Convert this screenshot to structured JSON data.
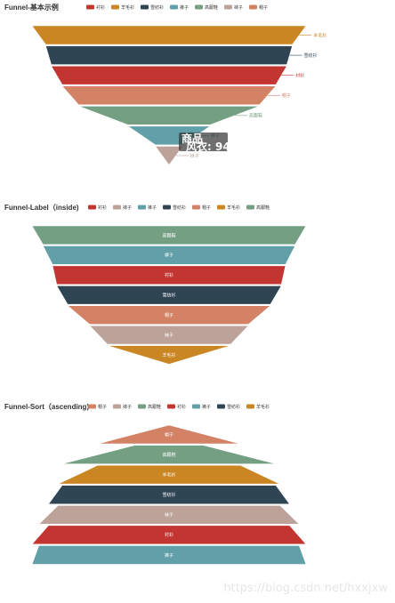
{
  "charts": [
    {
      "type": "funnel",
      "title": "Funnel-基本示例",
      "label_position": "outside",
      "sort": "descending",
      "legend": [
        "衬衫",
        "羊毛衫",
        "雪纺衫",
        "裤子",
        "高跟鞋",
        "袜子",
        "帽子"
      ],
      "data": [
        {
          "name": "羊毛衫",
          "value": 100
        },
        {
          "name": "雪纺衫",
          "value": 90
        },
        {
          "name": "衬衫",
          "value": 86
        },
        {
          "name": "帽子",
          "value": 78
        },
        {
          "name": "高跟鞋",
          "value": 66
        },
        {
          "name": "裤子",
          "value": 30
        },
        {
          "name": "袜子",
          "value": 10
        }
      ]
    },
    {
      "type": "funnel",
      "title": "Funnel-Label（inside)",
      "label_position": "inside",
      "sort": "descending",
      "legend": [
        "衬衫",
        "袜子",
        "裤子",
        "雪纺衫",
        "帽子",
        "羊毛衫",
        "高跟鞋"
      ],
      "data": [
        {
          "name": "高跟鞋",
          "value": 100
        },
        {
          "name": "裤子",
          "value": 92
        },
        {
          "name": "衬衫",
          "value": 85
        },
        {
          "name": "雪纺衫",
          "value": 82
        },
        {
          "name": "帽子",
          "value": 74
        },
        {
          "name": "袜子",
          "value": 58
        },
        {
          "name": "羊毛衫",
          "value": 45
        }
      ]
    },
    {
      "type": "funnel",
      "title": "Funnel-Sort（ascending)",
      "label_position": "inside",
      "sort": "ascending",
      "legend": [
        "帽子",
        "袜子",
        "高跟鞋",
        "衬衫",
        "裤子",
        "雪纺衫",
        "羊毛衫"
      ],
      "data": [
        {
          "name": "帽子",
          "value": 25
        },
        {
          "name": "高跟鞋",
          "value": 52
        },
        {
          "name": "羊毛衫",
          "value": 78
        },
        {
          "name": "雪纺衫",
          "value": 81
        },
        {
          "name": "袜子",
          "value": 88
        },
        {
          "name": "衬衫",
          "value": 95
        },
        {
          "name": "裤子",
          "value": 100
        }
      ]
    }
  ],
  "colors": {
    "衬衫": "#c23531",
    "羊毛衫": "#ca8622",
    "雪纺衫": "#2f4554",
    "裤子": "#61a0a8",
    "高跟鞋": "#749f83",
    "袜子": "#bda29a",
    "帽子": "#d48265"
  },
  "tooltip": {
    "series": "商品",
    "text": "风衣: 94"
  },
  "watermark": "https://blog.csdn.net/hxxjxw"
}
